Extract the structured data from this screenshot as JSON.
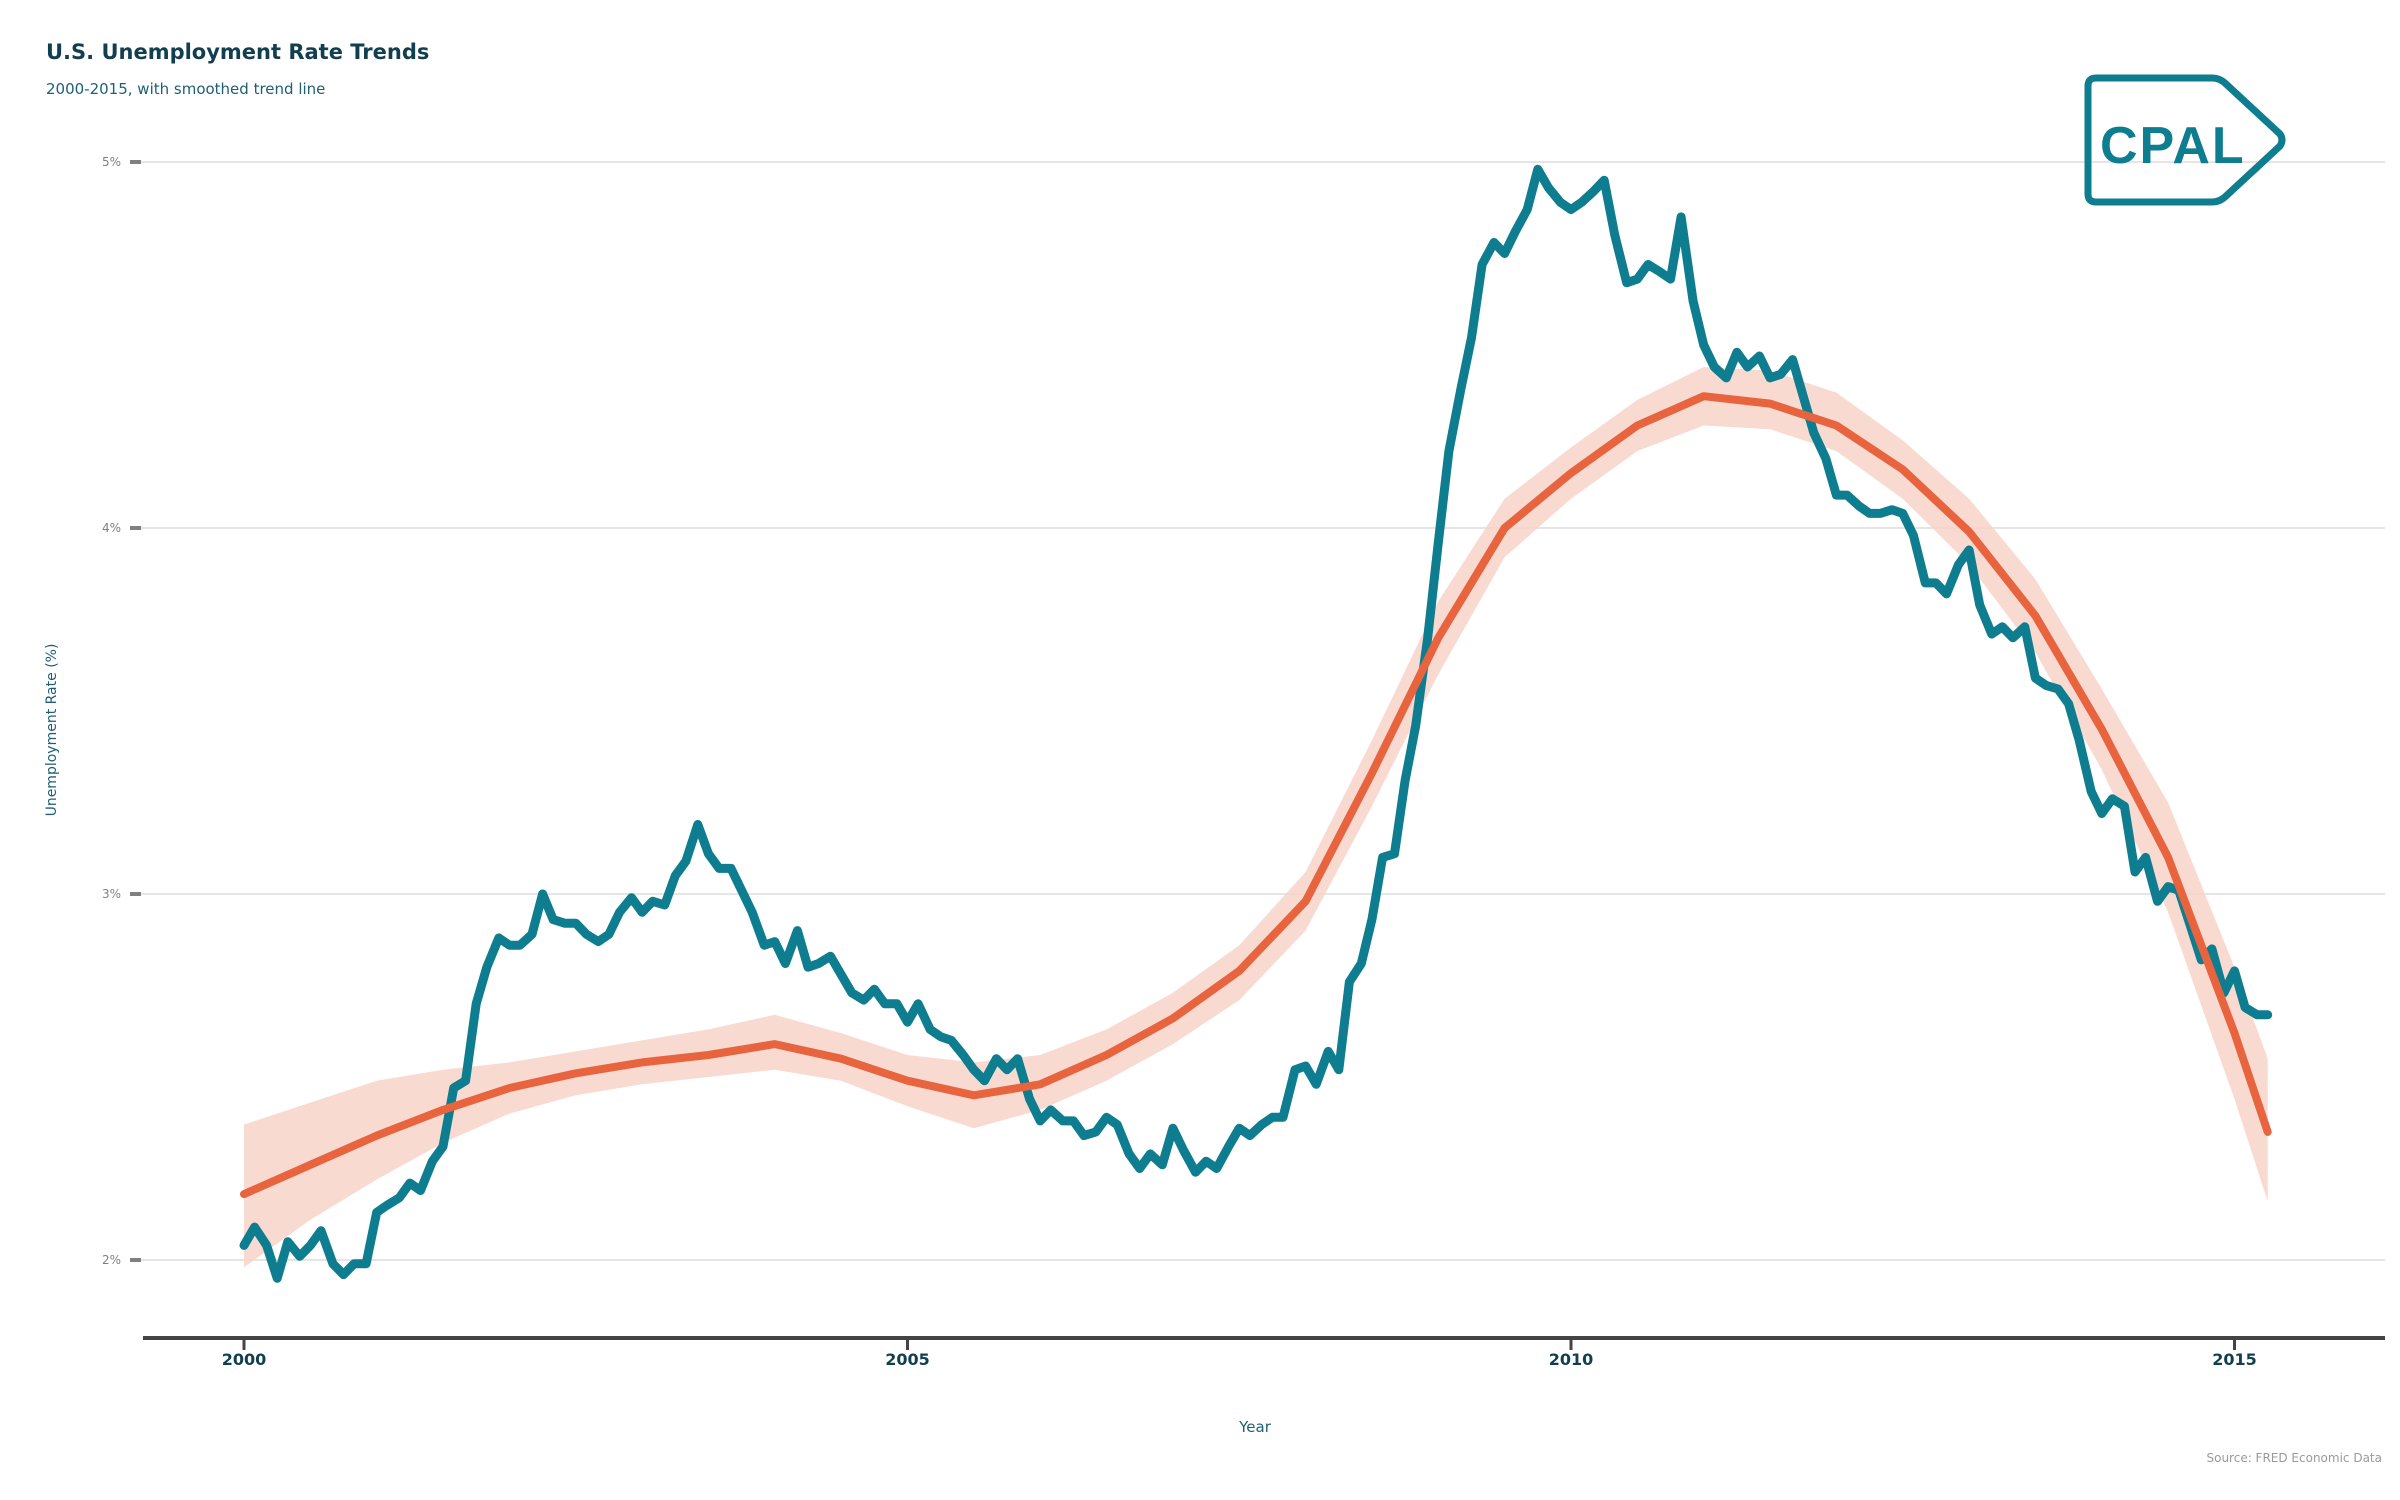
{
  "title": "U.S. Unemployment Rate Trends",
  "subtitle": "2000-2015, with smoothed trend line",
  "source": "Source: FRED Economic Data",
  "logo_text": "CPAL",
  "colors": {
    "series": "#0e7d8f",
    "trend": "#e8643f",
    "band": "#f8d3c8",
    "title": "#123f4f"
  },
  "chart_data": {
    "type": "line",
    "title": "U.S. Unemployment Rate Trends",
    "subtitle": "2000-2015, with smoothed trend line",
    "xlabel": "Year",
    "ylabel": "Unemployment Rate (%)",
    "xlim": [
      1999.25,
      2016.0
    ],
    "ylim": [
      1.8,
      5.1
    ],
    "xticks": [
      2000,
      2005,
      2010,
      2015
    ],
    "xtick_labels": [
      "2000",
      "2005",
      "2010",
      "2015"
    ],
    "yticks": [
      2,
      3,
      4,
      5
    ],
    "ytick_labels": [
      "2%",
      "3%",
      "4%",
      "5%"
    ],
    "grid": "horizontal",
    "series": [
      {
        "type": "line",
        "x": [
          2000.0,
          2000.08,
          2000.17,
          2000.25,
          2000.33,
          2000.42,
          2000.5,
          2000.58,
          2000.67,
          2000.75,
          2000.83,
          2000.92,
          2001.0,
          2001.08,
          2001.17,
          2001.25,
          2001.33,
          2001.42,
          2001.5,
          2001.58,
          2001.67,
          2001.75,
          2001.83,
          2001.92,
          2002.0,
          2002.08,
          2002.17,
          2002.25,
          2002.33,
          2002.42,
          2002.5,
          2002.58,
          2002.67,
          2002.75,
          2002.83,
          2002.92,
          2003.0,
          2003.08,
          2003.17,
          2003.25,
          2003.33,
          2003.42,
          2003.5,
          2003.58,
          2003.67,
          2003.75,
          2003.83,
          2003.92,
          2004.0,
          2004.08,
          2004.17,
          2004.25,
          2004.33,
          2004.42,
          2004.5,
          2004.58,
          2004.67,
          2004.75,
          2004.83,
          2004.92,
          2005.0,
          2005.08,
          2005.17,
          2005.25,
          2005.33,
          2005.42,
          2005.5,
          2005.58,
          2005.67,
          2005.75,
          2005.83,
          2005.92,
          2006.0,
          2006.08,
          2006.17,
          2006.25,
          2006.33,
          2006.42,
          2006.5,
          2006.58,
          2006.67,
          2006.75,
          2006.83,
          2006.92,
          2007.0,
          2007.08,
          2007.17,
          2007.25,
          2007.33,
          2007.42,
          2007.5,
          2007.58,
          2007.67,
          2007.75,
          2007.83,
          2007.92,
          2008.0,
          2008.08,
          2008.17,
          2008.25,
          2008.33,
          2008.42,
          2008.5,
          2008.58,
          2008.67,
          2008.75,
          2008.83,
          2008.92,
          2009.0,
          2009.08,
          2009.17,
          2009.25,
          2009.33,
          2009.42,
          2009.5,
          2009.58,
          2009.67,
          2009.75,
          2009.83,
          2009.92,
          2010.0,
          2010.08,
          2010.17,
          2010.25,
          2010.33,
          2010.42,
          2010.5,
          2010.58,
          2010.67,
          2010.75,
          2010.83,
          2010.92,
          2011.0,
          2011.08,
          2011.17,
          2011.25,
          2011.33,
          2011.42,
          2011.5,
          2011.58,
          2011.67,
          2011.75,
          2011.83,
          2011.92,
          2012.0,
          2012.08,
          2012.17,
          2012.25,
          2012.33,
          2012.42,
          2012.5,
          2012.58,
          2012.67,
          2012.75,
          2012.83,
          2012.92,
          2013.0,
          2013.08,
          2013.17,
          2013.25,
          2013.33,
          2013.42,
          2013.5,
          2013.58,
          2013.67,
          2013.75,
          2013.83,
          2013.92,
          2014.0,
          2014.08,
          2014.17,
          2014.25,
          2014.33,
          2014.42,
          2014.5,
          2014.58,
          2014.67,
          2014.75,
          2014.83,
          2014.92,
          2015.0,
          2015.08,
          2015.17,
          2015.25
        ],
        "y": [
          2.04,
          2.09,
          2.04,
          1.95,
          2.05,
          2.01,
          2.04,
          2.08,
          1.99,
          1.96,
          1.99,
          1.99,
          2.13,
          2.15,
          2.17,
          2.21,
          2.19,
          2.27,
          2.31,
          2.47,
          2.49,
          2.7,
          2.8,
          2.88,
          2.86,
          2.86,
          2.89,
          3.0,
          2.93,
          2.92,
          2.92,
          2.89,
          2.87,
          2.89,
          2.95,
          2.99,
          2.95,
          2.98,
          2.97,
          3.05,
          3.09,
          3.19,
          3.11,
          3.07,
          3.07,
          3.01,
          2.95,
          2.86,
          2.87,
          2.81,
          2.9,
          2.8,
          2.81,
          2.83,
          2.78,
          2.73,
          2.71,
          2.74,
          2.7,
          2.7,
          2.65,
          2.7,
          2.63,
          2.61,
          2.6,
          2.56,
          2.52,
          2.49,
          2.55,
          2.52,
          2.55,
          2.44,
          2.38,
          2.41,
          2.38,
          2.38,
          2.34,
          2.35,
          2.39,
          2.37,
          2.29,
          2.25,
          2.29,
          2.26,
          2.36,
          2.3,
          2.24,
          2.27,
          2.25,
          2.31,
          2.36,
          2.34,
          2.37,
          2.39,
          2.39,
          2.52,
          2.53,
          2.48,
          2.57,
          2.52,
          2.76,
          2.81,
          2.93,
          3.1,
          3.11,
          3.31,
          3.46,
          3.7,
          3.96,
          4.21,
          4.38,
          4.52,
          4.72,
          4.78,
          4.75,
          4.81,
          4.87,
          4.98,
          4.93,
          4.89,
          4.87,
          4.89,
          4.92,
          4.95,
          4.8,
          4.67,
          4.68,
          4.72,
          4.7,
          4.68,
          4.85,
          4.62,
          4.5,
          4.44,
          4.41,
          4.48,
          4.44,
          4.47,
          4.41,
          4.42,
          4.46,
          4.36,
          4.26,
          4.19,
          4.09,
          4.09,
          4.06,
          4.04,
          4.04,
          4.05,
          4.04,
          3.98,
          3.85,
          3.85,
          3.82,
          3.9,
          3.94,
          3.79,
          3.71,
          3.73,
          3.7,
          3.73,
          3.59,
          3.57,
          3.56,
          3.52,
          3.42,
          3.28,
          3.22,
          3.26,
          3.24,
          3.06,
          3.1,
          2.98,
          3.02,
          3.01,
          2.91,
          2.82,
          2.85,
          2.73,
          2.79,
          2.69,
          2.67,
          2.67
        ]
      },
      {
        "type": "smooth",
        "x": [
          2000.0,
          2000.5,
          2001.0,
          2001.5,
          2002.0,
          2002.5,
          2003.0,
          2003.5,
          2004.0,
          2004.5,
          2005.0,
          2005.5,
          2006.0,
          2006.5,
          2007.0,
          2007.5,
          2008.0,
          2008.5,
          2009.0,
          2009.5,
          2010.0,
          2010.5,
          2011.0,
          2011.5,
          2012.0,
          2012.5,
          2013.0,
          2013.5,
          2014.0,
          2014.5,
          2015.0,
          2015.25
        ],
        "y": [
          2.18,
          2.26,
          2.34,
          2.41,
          2.47,
          2.51,
          2.54,
          2.56,
          2.59,
          2.55,
          2.49,
          2.45,
          2.48,
          2.56,
          2.66,
          2.79,
          2.98,
          3.33,
          3.7,
          4.0,
          4.15,
          4.28,
          4.36,
          4.34,
          4.28,
          4.16,
          3.99,
          3.76,
          3.45,
          3.1,
          2.62,
          2.35
        ],
        "lower": [
          1.98,
          2.11,
          2.22,
          2.32,
          2.4,
          2.45,
          2.48,
          2.5,
          2.52,
          2.49,
          2.42,
          2.36,
          2.41,
          2.49,
          2.59,
          2.71,
          2.9,
          3.24,
          3.6,
          3.92,
          4.08,
          4.21,
          4.28,
          4.27,
          4.21,
          4.08,
          3.9,
          3.66,
          3.34,
          2.95,
          2.44,
          2.16
        ],
        "upper": [
          2.37,
          2.43,
          2.49,
          2.52,
          2.54,
          2.57,
          2.6,
          2.63,
          2.67,
          2.62,
          2.56,
          2.54,
          2.56,
          2.63,
          2.73,
          2.86,
          3.06,
          3.42,
          3.8,
          4.08,
          4.22,
          4.35,
          4.44,
          4.43,
          4.37,
          4.24,
          4.08,
          3.86,
          3.56,
          3.25,
          2.8,
          2.55
        ]
      }
    ]
  }
}
